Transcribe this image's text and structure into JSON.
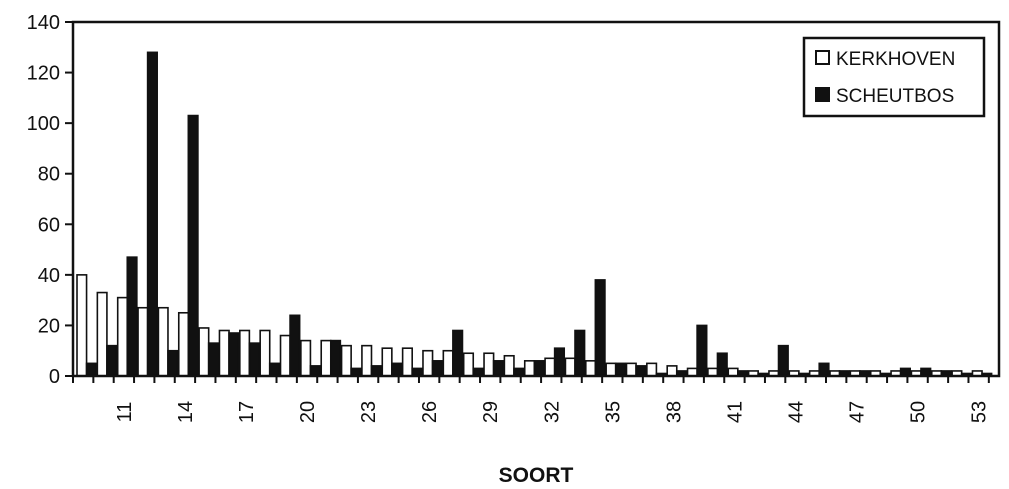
{
  "chart_data": {
    "type": "bar",
    "title": "",
    "xlabel": "SOORT",
    "ylabel": "",
    "ylim": [
      0,
      140
    ],
    "yticks": [
      "0",
      "20",
      "40",
      "60",
      "80",
      "100",
      "120",
      "140"
    ],
    "x_tick_labels": [
      "11",
      "14",
      "17",
      "20",
      "23",
      "26",
      "29",
      "32",
      "35",
      "38",
      "41",
      "44",
      "47",
      "50",
      "53"
    ],
    "categories": [
      9,
      10,
      11,
      12,
      13,
      14,
      15,
      16,
      17,
      18,
      19,
      20,
      21,
      22,
      23,
      24,
      25,
      26,
      27,
      28,
      29,
      30,
      31,
      32,
      33,
      34,
      35,
      36,
      37,
      38,
      39,
      40,
      41,
      42,
      43,
      44,
      45,
      46,
      47,
      48,
      49,
      50,
      51,
      52,
      53
    ],
    "legend_position": "top-right",
    "grid": false,
    "series": [
      {
        "name": "KERKHOVEN",
        "color": "#ffffff",
        "values": [
          40,
          33,
          31,
          27,
          27,
          25,
          19,
          18,
          18,
          18,
          16,
          14,
          14,
          12,
          12,
          11,
          11,
          10,
          10,
          9,
          9,
          8,
          6,
          7,
          7,
          6,
          5,
          5,
          5,
          4,
          3,
          3,
          3,
          2,
          2,
          2,
          2,
          2,
          2,
          2,
          2,
          2,
          2,
          2,
          2
        ]
      },
      {
        "name": "SCHEUTBOS",
        "color": "#111111",
        "values": [
          5,
          12,
          47,
          128,
          10,
          103,
          13,
          17,
          13,
          5,
          24,
          4,
          14,
          3,
          4,
          5,
          3,
          6,
          18,
          3,
          6,
          3,
          6,
          11,
          18,
          38,
          5,
          4,
          1,
          2,
          20,
          9,
          2,
          1,
          12,
          1,
          5,
          2,
          2,
          1,
          3,
          3,
          2,
          1,
          1
        ]
      }
    ]
  }
}
